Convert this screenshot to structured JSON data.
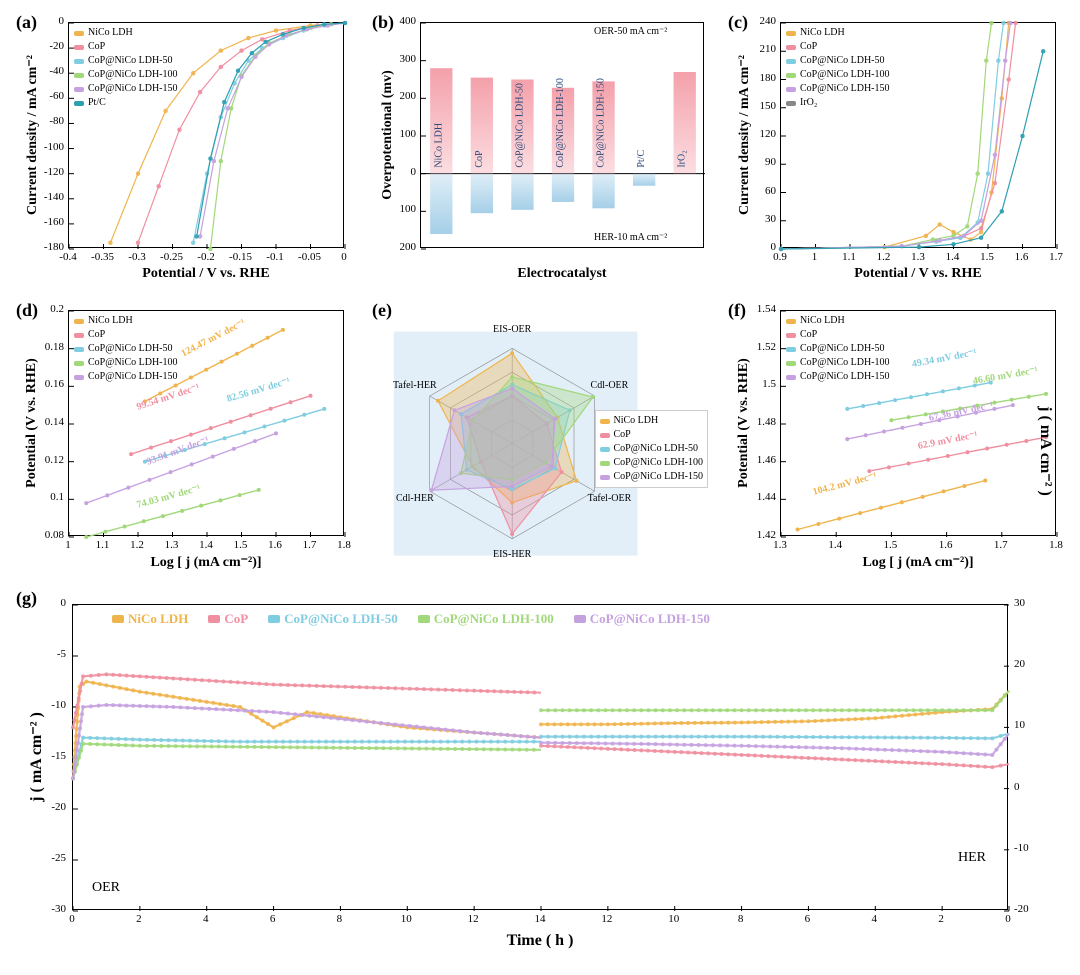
{
  "series_colors": {
    "NiCo LDH": "#f0b44c",
    "CoP": "#f08fa0",
    "CoP@NiCo LDH-50": "#7fcde0",
    "CoP@NiCo LDH-100": "#a1d87a",
    "CoP@NiCo LDH-150": "#c6a1e0",
    "Pt/C": "#2e9fb3",
    "IrO2": "#2e9fb3"
  },
  "panel_a": {
    "label": "(a)",
    "type": "scatter-line",
    "xlabel": "Potential / V vs. RHE",
    "ylabel": "Current density / mA cm⁻²",
    "xlim": [
      -0.4,
      0.0
    ],
    "ylim": [
      -180,
      0
    ],
    "xticks": [
      -0.4,
      -0.35,
      -0.3,
      -0.25,
      -0.2,
      -0.15,
      -0.1,
      -0.05,
      0.0
    ],
    "yticks": [
      -180,
      -160,
      -140,
      -120,
      -100,
      -80,
      -60,
      -40,
      -20,
      0
    ],
    "legend": [
      "NiCo LDH",
      "CoP",
      "CoP@NiCo LDH-50",
      "CoP@NiCo LDH-100",
      "CoP@NiCo LDH-150",
      "Pt/C"
    ],
    "curves": {
      "NiCo LDH": [
        [
          -0.34,
          -175
        ],
        [
          -0.3,
          -120
        ],
        [
          -0.26,
          -70
        ],
        [
          -0.22,
          -40
        ],
        [
          -0.18,
          -22
        ],
        [
          -0.14,
          -12
        ],
        [
          -0.1,
          -6
        ],
        [
          -0.05,
          -2
        ],
        [
          0,
          0
        ]
      ],
      "CoP": [
        [
          -0.3,
          -175
        ],
        [
          -0.27,
          -130
        ],
        [
          -0.24,
          -85
        ],
        [
          -0.21,
          -55
        ],
        [
          -0.18,
          -35
        ],
        [
          -0.15,
          -22
        ],
        [
          -0.12,
          -13
        ],
        [
          -0.08,
          -6
        ],
        [
          -0.04,
          -2
        ],
        [
          0,
          0
        ]
      ],
      "CoP@NiCo LDH-50": [
        [
          -0.22,
          -175
        ],
        [
          -0.2,
          -120
        ],
        [
          -0.18,
          -75
        ],
        [
          -0.16,
          -48
        ],
        [
          -0.14,
          -30
        ],
        [
          -0.12,
          -20
        ],
        [
          -0.09,
          -12
        ],
        [
          -0.06,
          -6
        ],
        [
          -0.03,
          -2
        ],
        [
          0,
          0
        ]
      ],
      "CoP@NiCo LDH-100": [
        [
          -0.195,
          -180
        ],
        [
          -0.18,
          -110
        ],
        [
          -0.165,
          -68
        ],
        [
          -0.15,
          -42
        ],
        [
          -0.13,
          -26
        ],
        [
          -0.11,
          -16
        ],
        [
          -0.08,
          -9
        ],
        [
          -0.05,
          -4
        ],
        [
          -0.02,
          -1
        ],
        [
          0,
          0
        ]
      ],
      "CoP@NiCo LDH-150": [
        [
          -0.21,
          -170
        ],
        [
          -0.19,
          -110
        ],
        [
          -0.17,
          -68
        ],
        [
          -0.15,
          -43
        ],
        [
          -0.13,
          -27
        ],
        [
          -0.11,
          -17
        ],
        [
          -0.085,
          -10
        ],
        [
          -0.055,
          -5
        ],
        [
          -0.025,
          -2
        ],
        [
          0,
          0
        ]
      ],
      "Pt/C": [
        [
          -0.215,
          -170
        ],
        [
          -0.195,
          -108
        ],
        [
          -0.175,
          -63
        ],
        [
          -0.155,
          -38
        ],
        [
          -0.135,
          -24
        ],
        [
          -0.115,
          -15
        ],
        [
          -0.09,
          -9
        ],
        [
          -0.06,
          -4
        ],
        [
          -0.03,
          -1
        ],
        [
          0,
          0
        ]
      ]
    }
  },
  "panel_b": {
    "label": "(b)",
    "type": "bar-split",
    "xlabel": "Electrocatalyst",
    "ylabel": "Overpotentional (mv)",
    "ylim": [
      -200,
      400
    ],
    "yticks": [
      -200,
      -100,
      0,
      100,
      200,
      300,
      400
    ],
    "ylabels_shown": [
      "200",
      "100",
      "0",
      "100",
      "200",
      "300",
      "400"
    ],
    "top_text": "OER-50 mA cm⁻²",
    "bottom_text": "HER-10 mA cm⁻²",
    "categories": [
      "NiCo LDH",
      "CoP",
      "CoP@NiCo LDH-50",
      "CoP@NiCo LDH-100",
      "CoP@NiCo LDH-150",
      "Pt/C",
      "IrO₂"
    ],
    "oer_values": [
      280,
      255,
      250,
      228,
      245,
      null,
      270
    ],
    "her_values": [
      -160,
      -105,
      -96,
      -75,
      -92,
      -32,
      null
    ],
    "oer_color": "#f4a0aa",
    "her_color": "#a5cfe8",
    "bar_width": 0.55,
    "label_rotation": 90,
    "category_fontsize": 10
  },
  "panel_c": {
    "label": "(c)",
    "type": "scatter-line",
    "xlabel": "Potential / V vs. RHE",
    "ylabel": "Current density / mA cm⁻²",
    "xlim": [
      0.9,
      1.7
    ],
    "ylim": [
      0,
      240
    ],
    "xticks": [
      0.9,
      1.0,
      1.1,
      1.2,
      1.3,
      1.4,
      1.5,
      1.6,
      1.7
    ],
    "yticks": [
      0,
      30,
      60,
      90,
      120,
      150,
      180,
      210,
      240
    ],
    "legend": [
      "NiCo LDH",
      "CoP",
      "CoP@NiCo LDH-50",
      "CoP@NiCo LDH-100",
      "CoP@NiCo LDH-150",
      "IrO₂"
    ],
    "curves": {
      "NiCo LDH": [
        [
          0.9,
          0
        ],
        [
          1.2,
          2
        ],
        [
          1.32,
          14
        ],
        [
          1.36,
          26
        ],
        [
          1.4,
          18
        ],
        [
          1.45,
          10
        ],
        [
          1.48,
          18
        ],
        [
          1.51,
          60
        ],
        [
          1.54,
          160
        ],
        [
          1.56,
          240
        ]
      ],
      "CoP": [
        [
          0.9,
          0
        ],
        [
          1.25,
          3
        ],
        [
          1.35,
          8
        ],
        [
          1.42,
          12
        ],
        [
          1.48,
          22
        ],
        [
          1.52,
          70
        ],
        [
          1.56,
          180
        ],
        [
          1.58,
          240
        ]
      ],
      "CoP@NiCo LDH-50": [
        [
          0.9,
          0
        ],
        [
          1.25,
          3
        ],
        [
          1.35,
          8
        ],
        [
          1.42,
          12
        ],
        [
          1.47,
          28
        ],
        [
          1.5,
          80
        ],
        [
          1.53,
          200
        ],
        [
          1.545,
          240
        ]
      ],
      "CoP@NiCo LDH-100": [
        [
          0.9,
          0
        ],
        [
          1.25,
          3
        ],
        [
          1.34,
          10
        ],
        [
          1.4,
          14
        ],
        [
          1.44,
          24
        ],
        [
          1.47,
          80
        ],
        [
          1.495,
          200
        ],
        [
          1.51,
          240
        ]
      ],
      "CoP@NiCo LDH-150": [
        [
          0.9,
          0
        ],
        [
          1.25,
          3
        ],
        [
          1.36,
          9
        ],
        [
          1.43,
          14
        ],
        [
          1.48,
          30
        ],
        [
          1.52,
          100
        ],
        [
          1.55,
          200
        ],
        [
          1.565,
          240
        ]
      ],
      "IrO2": [
        [
          0.9,
          0
        ],
        [
          1.3,
          2
        ],
        [
          1.4,
          5
        ],
        [
          1.48,
          12
        ],
        [
          1.54,
          40
        ],
        [
          1.6,
          120
        ],
        [
          1.66,
          210
        ]
      ]
    }
  },
  "panel_d": {
    "label": "(d)",
    "type": "tafel",
    "xlabel": "Log [ j (mA cm⁻²)]",
    "ylabel": "Potential (V vs. RHE)",
    "xlim": [
      1.0,
      1.8
    ],
    "ylim": [
      0.08,
      0.2
    ],
    "xticks": [
      1.0,
      1.1,
      1.2,
      1.3,
      1.4,
      1.5,
      1.6,
      1.7,
      1.8
    ],
    "yticks": [
      0.08,
      0.1,
      0.12,
      0.14,
      0.16,
      0.18,
      0.2
    ],
    "legend": [
      "NiCo LDH",
      "CoP",
      "CoP@NiCo LDH-50",
      "CoP@NiCo LDH-100",
      "CoP@NiCo LDH-150"
    ],
    "lines": {
      "NiCo LDH": {
        "x": [
          1.22,
          1.62
        ],
        "y": [
          0.152,
          0.19
        ],
        "annot": "124.47 mV dec⁻¹",
        "annot_pos": [
          1.33,
          0.176
        ]
      },
      "CoP": {
        "x": [
          1.18,
          1.7
        ],
        "y": [
          0.124,
          0.155
        ],
        "annot": "99.54 mV dec⁻¹",
        "annot_pos": [
          1.2,
          0.148
        ]
      },
      "CoP@NiCo LDH-50": {
        "x": [
          1.22,
          1.74
        ],
        "y": [
          0.12,
          0.148
        ],
        "annot": "82.56 mV dec⁻¹",
        "annot_pos": [
          1.46,
          0.152
        ]
      },
      "CoP@NiCo LDH-150": {
        "x": [
          1.05,
          1.6
        ],
        "y": [
          0.098,
          0.135
        ],
        "annot": "93.91 mV dec⁻¹",
        "annot_pos": [
          1.23,
          0.119
        ]
      },
      "CoP@NiCo LDH-100": {
        "x": [
          1.05,
          1.55
        ],
        "y": [
          0.08,
          0.105
        ],
        "annot": "74.03 mV dec⁻¹",
        "annot_pos": [
          1.2,
          0.096
        ]
      }
    }
  },
  "panel_e": {
    "label": "(e)",
    "type": "radar",
    "axes": [
      "EIS-OER",
      "Cdl-OER",
      "Tafel-OER",
      "EIS-HER",
      "Cdl-HER",
      "Tafel-HER"
    ],
    "legend": [
      "NiCo LDH",
      "CoP",
      "CoP@NiCo LDH-50",
      "CoP@NiCo LDH-100",
      "CoP@NiCo LDH-150"
    ],
    "background_color": "#cfe4f3",
    "values": {
      "NiCo LDH": [
        0.95,
        0.55,
        0.78,
        0.62,
        0.48,
        0.9
      ],
      "CoP": [
        0.5,
        0.42,
        0.6,
        0.95,
        0.38,
        0.55
      ],
      "CoP@NiCo LDH-50": [
        0.62,
        0.7,
        0.52,
        0.48,
        0.55,
        0.62
      ],
      "CoP@NiCo LDH-100": [
        0.7,
        0.98,
        0.4,
        0.38,
        0.62,
        0.48
      ],
      "CoP@NiCo LDH-150": [
        0.58,
        0.52,
        0.48,
        0.45,
        0.98,
        0.7
      ]
    },
    "rings": 4
  },
  "panel_f": {
    "label": "(f)",
    "type": "tafel",
    "xlabel": "Log [ j (mA cm⁻²)]",
    "ylabel": "Potential (V vs. RHE)",
    "xlim": [
      1.3,
      1.8
    ],
    "ylim": [
      1.42,
      1.54
    ],
    "xticks": [
      1.3,
      1.4,
      1.5,
      1.6,
      1.7,
      1.8
    ],
    "yticks": [
      1.42,
      1.44,
      1.46,
      1.48,
      1.5,
      1.52,
      1.54
    ],
    "legend": [
      "NiCo LDH",
      "CoP",
      "CoP@NiCo LDH-50",
      "CoP@NiCo LDH-100",
      "CoP@NiCo LDH-150"
    ],
    "lines": {
      "CoP@NiCo LDH-50": {
        "x": [
          1.42,
          1.68
        ],
        "y": [
          1.488,
          1.502
        ],
        "annot": "49.34 mV dec⁻¹",
        "annot_pos": [
          1.54,
          1.511
        ]
      },
      "CoP@NiCo LDH-100": {
        "x": [
          1.5,
          1.78
        ],
        "y": [
          1.482,
          1.496
        ],
        "annot": "46.60 mV dec⁻¹",
        "annot_pos": [
          1.65,
          1.502
        ]
      },
      "CoP@NiCo LDH-150": {
        "x": [
          1.42,
          1.72
        ],
        "y": [
          1.472,
          1.49
        ],
        "annot": "67.36 mV dec⁻¹",
        "annot_pos": [
          1.57,
          1.482
        ]
      },
      "CoP": {
        "x": [
          1.46,
          1.78
        ],
        "y": [
          1.455,
          1.473
        ],
        "annot": "62.9 mV dec⁻¹",
        "annot_pos": [
          1.55,
          1.467
        ]
      },
      "NiCo LDH": {
        "x": [
          1.33,
          1.67
        ],
        "y": [
          1.424,
          1.45
        ],
        "annot": "104.2 mV dec⁻¹",
        "annot_pos": [
          1.36,
          1.443
        ]
      }
    }
  },
  "panel_g": {
    "label": "(g)",
    "type": "dual-axis-time",
    "xlabel": "Time ( h )",
    "ylabel_left": "j ( mA cm⁻² )",
    "ylabel_right": "j ( mA cm⁻² )",
    "her_text": "HER",
    "oer_text": "OER",
    "legend": [
      "NiCo LDH",
      "CoP",
      "CoP@NiCo LDH-50",
      "CoP@NiCo LDH-100",
      "CoP@NiCo LDH-150"
    ],
    "xlim": [
      0,
      28
    ],
    "xticks_left": {
      "positions": [
        0,
        2,
        4,
        6,
        8,
        10,
        12,
        14
      ],
      "labels": [
        "0",
        "2",
        "4",
        "6",
        "8",
        "10",
        "12",
        "14"
      ]
    },
    "xticks_right": {
      "positions": [
        14,
        16,
        18,
        20,
        22,
        24,
        26,
        28
      ],
      "labels": [
        "14",
        "12",
        "10",
        "8",
        "6",
        "4",
        "2",
        "0"
      ]
    },
    "ylim_left": [
      -30,
      0
    ],
    "yticks_left": [
      -30,
      -25,
      -20,
      -15,
      -10,
      -5,
      0
    ],
    "ylim_right": [
      -20,
      30
    ],
    "yticks_right": [
      -20,
      -10,
      0,
      10,
      20,
      30
    ],
    "left_curves": {
      "NiCo LDH": [
        [
          0,
          -17
        ],
        [
          0.2,
          -8
        ],
        [
          0.4,
          -7.5
        ],
        [
          2,
          -8.5
        ],
        [
          4,
          -9.5
        ],
        [
          5,
          -10
        ],
        [
          6,
          -12
        ],
        [
          7,
          -10.5
        ],
        [
          8,
          -11
        ],
        [
          10,
          -12
        ],
        [
          12,
          -12.5
        ],
        [
          14,
          -13
        ]
      ],
      "CoP": [
        [
          0,
          -12
        ],
        [
          0.3,
          -7
        ],
        [
          1,
          -6.8
        ],
        [
          3,
          -7.2
        ],
        [
          6,
          -7.8
        ],
        [
          9,
          -8.1
        ],
        [
          12,
          -8.4
        ],
        [
          14,
          -8.6
        ]
      ],
      "CoP@NiCo LDH-50": [
        [
          0,
          -17
        ],
        [
          0.3,
          -13
        ],
        [
          2,
          -13.2
        ],
        [
          5,
          -13.4
        ],
        [
          8,
          -13.4
        ],
        [
          11,
          -13.4
        ],
        [
          14,
          -13.4
        ]
      ],
      "CoP@NiCo LDH-100": [
        [
          0,
          -17
        ],
        [
          0.3,
          -13.6
        ],
        [
          2,
          -13.8
        ],
        [
          5,
          -13.9
        ],
        [
          8,
          -14
        ],
        [
          11,
          -14.1
        ],
        [
          14,
          -14.2
        ]
      ],
      "CoP@NiCo LDH-150": [
        [
          0,
          -17
        ],
        [
          0.3,
          -10
        ],
        [
          1,
          -9.8
        ],
        [
          3,
          -10
        ],
        [
          6,
          -10.5
        ],
        [
          9,
          -11.5
        ],
        [
          12,
          -12.5
        ],
        [
          14,
          -13
        ]
      ]
    },
    "right_curves": {
      "NiCo LDH": [
        [
          14,
          10.5
        ],
        [
          16,
          10.5
        ],
        [
          18,
          10.7
        ],
        [
          20,
          10.8
        ],
        [
          22,
          11
        ],
        [
          24,
          11.5
        ],
        [
          26,
          12.5
        ],
        [
          27.5,
          13
        ],
        [
          28,
          16
        ]
      ],
      "CoP": [
        [
          14,
          7
        ],
        [
          16,
          6.5
        ],
        [
          18,
          6
        ],
        [
          20,
          5.5
        ],
        [
          22,
          5
        ],
        [
          24,
          4.5
        ],
        [
          26,
          4
        ],
        [
          27.5,
          3.5
        ],
        [
          28,
          4
        ]
      ],
      "CoP@NiCo LDH-50": [
        [
          14,
          8.5
        ],
        [
          17,
          8.5
        ],
        [
          20,
          8.5
        ],
        [
          23,
          8.4
        ],
        [
          26,
          8.3
        ],
        [
          27.5,
          8.2
        ],
        [
          28,
          9
        ]
      ],
      "CoP@NiCo LDH-100": [
        [
          14,
          12.8
        ],
        [
          17,
          12.8
        ],
        [
          20,
          12.8
        ],
        [
          23,
          12.8
        ],
        [
          26,
          12.8
        ],
        [
          27.5,
          12.8
        ],
        [
          28,
          16
        ]
      ],
      "CoP@NiCo LDH-150": [
        [
          14,
          7.5
        ],
        [
          17,
          7.3
        ],
        [
          20,
          7
        ],
        [
          23,
          6.6
        ],
        [
          26,
          6.0
        ],
        [
          27.5,
          5.5
        ],
        [
          28,
          9
        ]
      ]
    }
  },
  "plot_style": {
    "marker_radius": 2.0,
    "line_width": 1.2,
    "font_family": "Times New Roman, serif",
    "axis_fontsize": 14,
    "tick_fontsize": 11,
    "legend_fontsize": 10,
    "annot_fontsize": 10,
    "background_color": "#ffffff"
  }
}
